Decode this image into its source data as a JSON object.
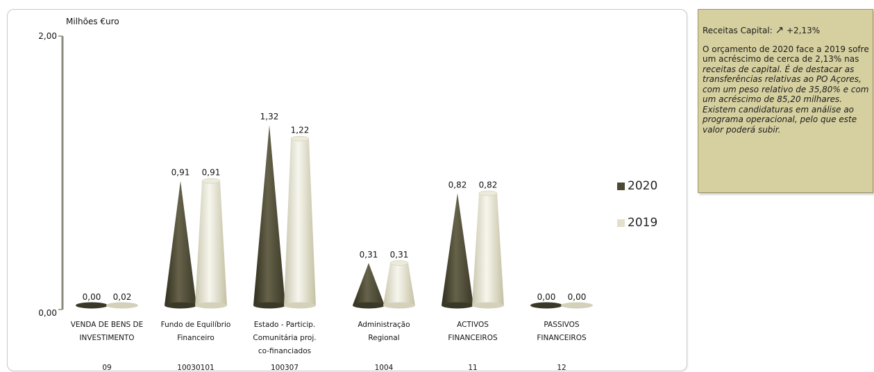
{
  "chart_data": {
    "type": "bar",
    "ylabel": "Milhões €uro",
    "ylim": [
      0,
      2
    ],
    "ytick_labels": [
      "2,00",
      "0,00"
    ],
    "categories": [
      "VENDA DE BENS DE INVESTIMENTO",
      "Fundo de Equilíbrio Financeiro",
      "Estado - Particip. Comunitária proj. co-financiados",
      "Administração Regional",
      "ACTIVOS FINANCEIROS",
      "PASSIVOS FINANCEIROS"
    ],
    "category_lines": [
      [
        "VENDA DE BENS DE",
        "INVESTIMENTO"
      ],
      [
        "Fundo de Equilíbrio",
        "Financeiro"
      ],
      [
        "Estado - Particip.",
        "Comunitária proj.",
        "co-financiados"
      ],
      [
        "Administração",
        "Regional"
      ],
      [
        "ACTIVOS",
        "FINANCEIROS"
      ],
      [
        "PASSIVOS",
        "FINANCEIROS"
      ]
    ],
    "codes": [
      "09",
      "10030101",
      "100307",
      "1004",
      "11",
      "12"
    ],
    "series": [
      {
        "name": "2020",
        "color": "#4d4a33",
        "values": [
          0.0,
          0.91,
          1.32,
          0.31,
          0.82,
          0.0
        ],
        "labels": [
          "0,00",
          "0,91",
          "1,32",
          "0,31",
          "0,82",
          "0,00"
        ]
      },
      {
        "name": "2019",
        "color": "#e2dfcb",
        "values": [
          0.02,
          0.91,
          1.22,
          0.31,
          0.82,
          0.0
        ],
        "labels": [
          "0,02",
          "0,91",
          "1,22",
          "0,31",
          "0,82",
          "0,00"
        ]
      }
    ],
    "legend_position": "right",
    "grid": false
  },
  "note": {
    "head_label": "Receitas Capital:",
    "arrow_icon": "↗",
    "head_value": "+2,13%",
    "body_normal": "O orçamento de 2020 face a 2019 sofre um acréscimo de cerca de 2,13% nas",
    "body_italic1": "receitas de capital. É de destacar as transferências relativas ao PO Açores, com um peso relativo de 35,80% e com um acréscimo de 85,20 milhares.",
    "body_italic2": "Existem candidaturas em análise ao programa operacional, pelo que este valor poderá subir."
  }
}
